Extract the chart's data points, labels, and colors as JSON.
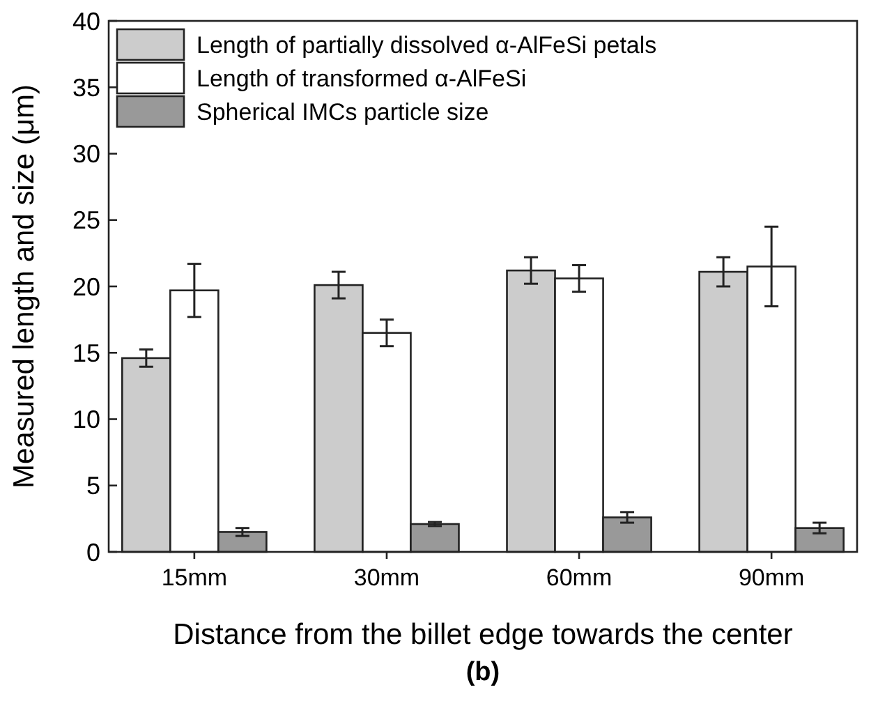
{
  "chart_data": {
    "type": "bar",
    "xlabel": "Distance from the billet edge towards the center",
    "ylabel": "Measured length and size (μm)",
    "annotations": [
      "(b)"
    ],
    "categories": [
      "15mm",
      "30mm",
      "60mm",
      "90mm"
    ],
    "series": [
      {
        "name": "Length of partially dissolved α-AlFeSi petals",
        "color": "#cccccc",
        "values": [
          14.6,
          20.1,
          21.2,
          21.1
        ],
        "errors": [
          0.65,
          1.0,
          1.0,
          1.1
        ]
      },
      {
        "name": "Length of transformed α-AlFeSi",
        "color": "#ffffff",
        "values": [
          19.7,
          16.5,
          20.6,
          21.5
        ],
        "errors": [
          2.0,
          1.0,
          1.0,
          3.0
        ]
      },
      {
        "name": "Spherical IMCs particle size",
        "color": "#999999",
        "values": [
          1.5,
          2.1,
          2.6,
          1.8
        ],
        "errors": [
          0.3,
          0.15,
          0.4,
          0.4
        ]
      }
    ],
    "ylim": [
      0,
      40
    ],
    "yticks": [
      0,
      5,
      10,
      15,
      20,
      25,
      30,
      35,
      40
    ],
    "grid": false,
    "legend": "top left"
  }
}
